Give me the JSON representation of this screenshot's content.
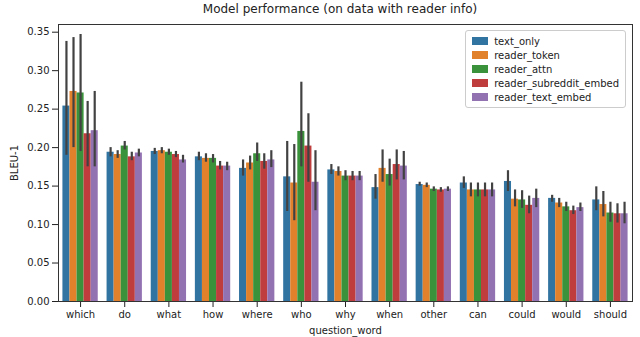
{
  "chart_data": {
    "type": "bar",
    "title": "Model performance (on data with reader info)",
    "x_label": "question_word",
    "y_label": "BLEU-1",
    "categories": [
      "which",
      "do",
      "what",
      "how",
      "where",
      "who",
      "why",
      "when",
      "other",
      "can",
      "could",
      "would",
      "should"
    ],
    "series": [
      {
        "name": "text_only",
        "color": "#3274a1",
        "values": [
          0.254,
          0.194,
          0.195,
          0.188,
          0.173,
          0.162,
          0.171,
          0.148,
          0.152,
          0.154,
          0.156,
          0.134,
          0.132
        ],
        "ci_low": [
          0.19,
          0.188,
          0.191,
          0.183,
          0.163,
          0.117,
          0.165,
          0.133,
          0.15,
          0.147,
          0.143,
          0.129,
          0.118
        ],
        "ci_high": [
          0.338,
          0.2,
          0.199,
          0.194,
          0.184,
          0.208,
          0.178,
          0.165,
          0.155,
          0.162,
          0.17,
          0.138,
          0.149
        ]
      },
      {
        "name": "reader_token",
        "color": "#e1812c",
        "values": [
          0.273,
          0.191,
          0.196,
          0.186,
          0.18,
          0.154,
          0.169,
          0.173,
          0.151,
          0.145,
          0.133,
          0.128,
          0.126
        ],
        "ci_low": [
          0.2,
          0.186,
          0.192,
          0.181,
          0.171,
          0.105,
          0.163,
          0.155,
          0.148,
          0.136,
          0.123,
          0.122,
          0.11
        ],
        "ci_high": [
          0.343,
          0.196,
          0.2,
          0.192,
          0.189,
          0.204,
          0.175,
          0.197,
          0.154,
          0.154,
          0.145,
          0.134,
          0.143
        ]
      },
      {
        "name": "reader_attn",
        "color": "#3a923a",
        "values": [
          0.271,
          0.202,
          0.194,
          0.186,
          0.192,
          0.221,
          0.163,
          0.165,
          0.146,
          0.145,
          0.132,
          0.123,
          0.115
        ],
        "ci_low": [
          0.195,
          0.197,
          0.19,
          0.18,
          0.182,
          0.175,
          0.157,
          0.15,
          0.143,
          0.136,
          0.121,
          0.117,
          0.103
        ],
        "ci_high": [
          0.347,
          0.208,
          0.198,
          0.191,
          0.206,
          0.285,
          0.17,
          0.185,
          0.149,
          0.154,
          0.144,
          0.129,
          0.129
        ]
      },
      {
        "name": "reader_subreddit_embed",
        "color": "#c03d3e",
        "values": [
          0.218,
          0.188,
          0.191,
          0.176,
          0.182,
          0.202,
          0.163,
          0.178,
          0.145,
          0.145,
          0.125,
          0.118,
          0.114
        ],
        "ci_low": [
          0.175,
          0.183,
          0.187,
          0.171,
          0.172,
          0.155,
          0.157,
          0.158,
          0.142,
          0.136,
          0.114,
          0.113,
          0.102
        ],
        "ci_high": [
          0.26,
          0.194,
          0.195,
          0.182,
          0.192,
          0.244,
          0.169,
          0.197,
          0.148,
          0.154,
          0.137,
          0.124,
          0.127
        ]
      },
      {
        "name": "reader_text_embed",
        "color": "#9372b2",
        "values": [
          0.222,
          0.193,
          0.184,
          0.176,
          0.184,
          0.155,
          0.163,
          0.176,
          0.146,
          0.145,
          0.134,
          0.122,
          0.114
        ],
        "ci_low": [
          0.175,
          0.188,
          0.18,
          0.17,
          0.174,
          0.118,
          0.157,
          0.158,
          0.143,
          0.136,
          0.122,
          0.117,
          0.101
        ],
        "ci_high": [
          0.273,
          0.198,
          0.19,
          0.181,
          0.196,
          0.196,
          0.169,
          0.195,
          0.149,
          0.154,
          0.146,
          0.128,
          0.129
        ]
      }
    ],
    "ylim": [
      0,
      0.36
    ],
    "yticks": [
      {
        "value": 0,
        "label": "0.00"
      },
      {
        "value": 0.05,
        "label": "0.05"
      },
      {
        "value": 0.1,
        "label": "0.10"
      },
      {
        "value": 0.15,
        "label": "0.15"
      },
      {
        "value": 0.2,
        "label": "0.20"
      },
      {
        "value": 0.25,
        "label": "0.25"
      },
      {
        "value": 0.3,
        "label": "0.30"
      },
      {
        "value": 0.35,
        "label": "0.35"
      }
    ],
    "grid": false,
    "legend": "upper right"
  }
}
